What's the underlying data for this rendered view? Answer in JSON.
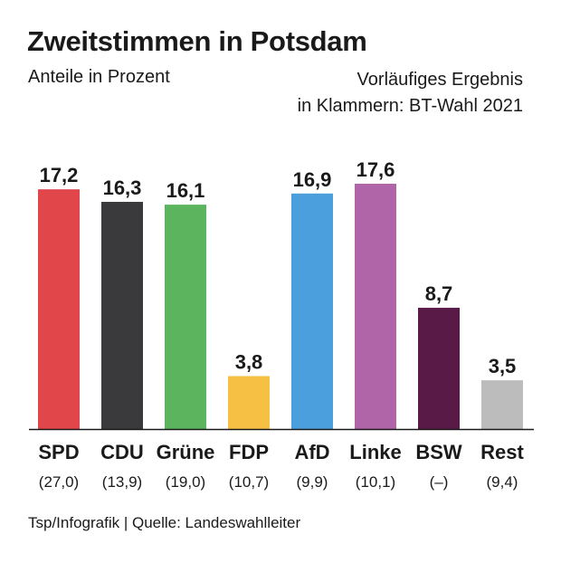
{
  "chart_data": {
    "type": "bar",
    "title": "Zweitstimmen in Potsdam",
    "subtitle": "Anteile in Prozent",
    "note_lines": [
      "Vorläufiges Ergebnis",
      "in Klammern: BT-Wahl 2021"
    ],
    "categories": [
      "SPD",
      "CDU",
      "Grüne",
      "FDP",
      "AfD",
      "Linke",
      "BSW",
      "Rest"
    ],
    "values": [
      17.2,
      16.3,
      16.1,
      3.8,
      16.9,
      17.6,
      8.7,
      3.5
    ],
    "value_labels": [
      "17,2",
      "16,3",
      "16,1",
      "3,8",
      "16,9",
      "17,6",
      "8,7",
      "3,5"
    ],
    "previous_labels": [
      "(27,0)",
      "(13,9)",
      "(19,0)",
      "(10,7)",
      "(9,9)",
      "(10,1)",
      "(–)",
      "(9,4)"
    ],
    "colors": [
      "#e0464a",
      "#3a3a3c",
      "#5cb55e",
      "#f6c044",
      "#4a9fdc",
      "#b065a8",
      "#5a1a48",
      "#bcbcbc"
    ],
    "ylim": [
      0,
      17.6
    ],
    "grid": false,
    "legend": "none"
  },
  "footer": "Tsp/Infografik | Quelle: Landeswahlleiter"
}
